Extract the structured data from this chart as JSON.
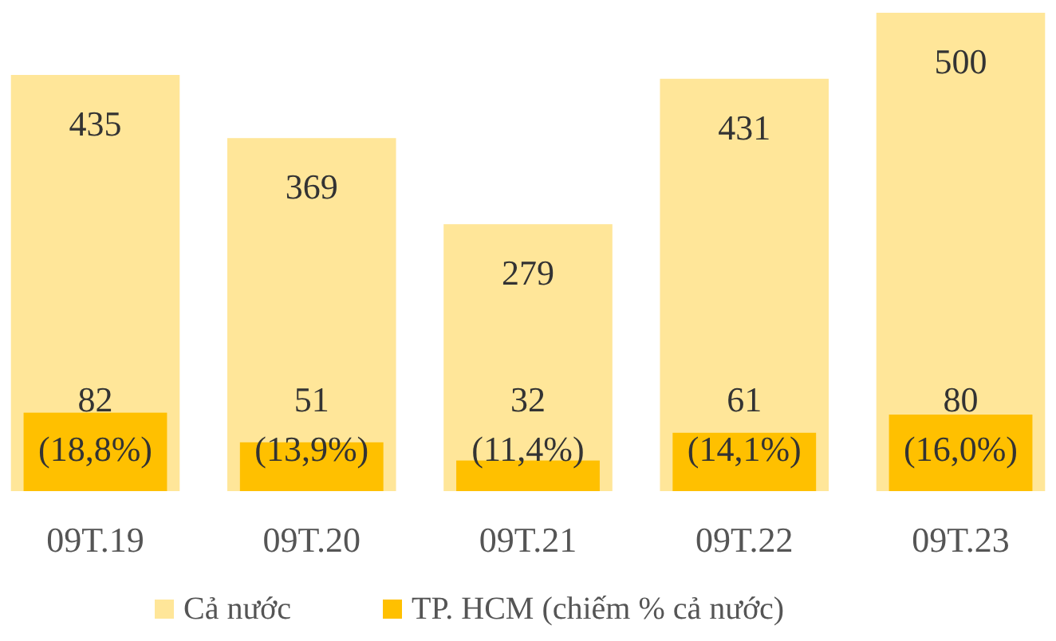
{
  "chart_data": {
    "type": "bar",
    "categories": [
      "09T.19",
      "09T.20",
      "09T.21",
      "09T.22",
      "09T.23"
    ],
    "series": [
      {
        "name": "Cả nước",
        "color": "#ffe699",
        "values": [
          435,
          369,
          279,
          431,
          500
        ],
        "value_labels": [
          "435",
          "369",
          "279",
          "431",
          "500"
        ]
      },
      {
        "name": "TP. HCM (chiếm % cả nước)",
        "color": "#ffc000",
        "values": [
          82,
          51,
          32,
          61,
          80
        ],
        "value_labels": [
          "82 (18,8%)",
          "51 (13,9%)",
          "32 (11,4%)",
          "61 (14,1%)",
          "80 (16,0%)"
        ]
      }
    ],
    "ylim": [
      0,
      500
    ],
    "tick_labels": "x",
    "legend": "bottom"
  }
}
